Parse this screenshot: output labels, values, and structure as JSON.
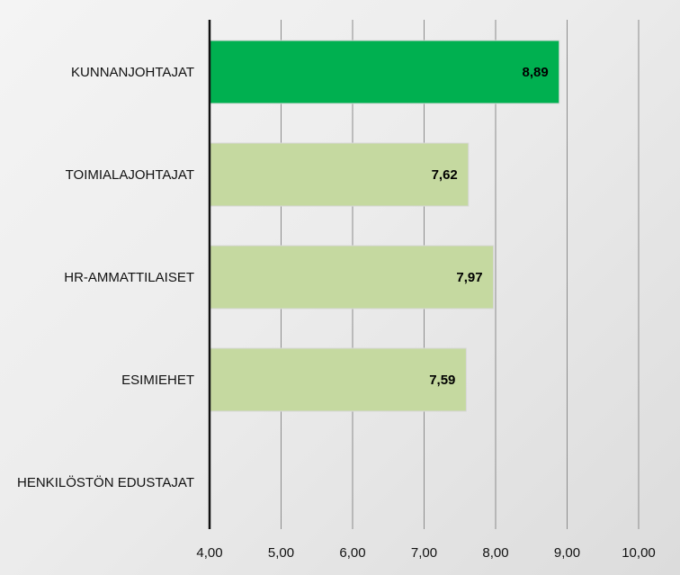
{
  "chart_data": {
    "type": "bar",
    "orientation": "horizontal",
    "categories": [
      "KUNNANJOHTAJAT",
      "TOIMIALAJOHTAJAT",
      "HR-AMMATTILAISET",
      "ESIMIEHET",
      "HENKILÖSTÖN EDUSTAJAT"
    ],
    "values": [
      8.89,
      7.62,
      7.97,
      7.59,
      null
    ],
    "value_labels": [
      "8,89",
      "7,62",
      "7,97",
      "7,59",
      ""
    ],
    "bar_colors": [
      "#00b050",
      "#c5d9a0",
      "#c5d9a0",
      "#c5d9a0",
      "#c5d9a0"
    ],
    "xlim": [
      4,
      10
    ],
    "xticks": [
      4,
      5,
      6,
      7,
      8,
      9,
      10
    ],
    "xtick_labels": [
      "4,00",
      "5,00",
      "6,00",
      "7,00",
      "8,00",
      "9,00",
      "10,00"
    ],
    "grid": "vertical",
    "legend": "none",
    "title": "",
    "xlabel": "",
    "ylabel": ""
  }
}
